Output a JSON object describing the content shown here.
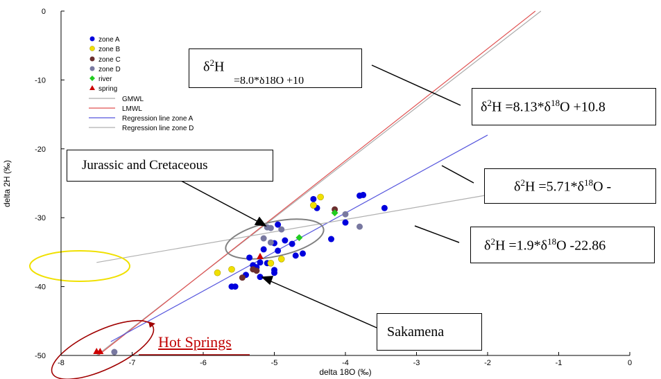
{
  "chart_data": {
    "type": "scatter",
    "xlabel": "delta 18O (‰)",
    "ylabel": "delta 2H (‰)",
    "xlim": [
      -8,
      0
    ],
    "ylim": [
      -50,
      0
    ],
    "x_ticks": [
      "-8",
      "-7",
      "-6",
      "-5",
      "-4",
      "-3",
      "-2",
      "-1",
      "0"
    ],
    "y_ticks": [
      "-50",
      "-40",
      "-30",
      "-20",
      "-10",
      "0"
    ],
    "grid": false,
    "legend_placement": "top-left",
    "series": [
      {
        "name": "zone A",
        "marker": "circle",
        "color": "#0000dd",
        "points": [
          [
            -4.45,
            -27.3
          ],
          [
            -3.8,
            -26.8
          ],
          [
            -3.75,
            -26.7
          ],
          [
            -3.45,
            -28.6
          ],
          [
            -4.4,
            -28.6
          ],
          [
            -4.0,
            -30.7
          ],
          [
            -4.2,
            -33.1
          ],
          [
            -4.95,
            -31
          ],
          [
            -4.85,
            -33.3
          ],
          [
            -5.0,
            -33.7
          ],
          [
            -4.95,
            -34.8
          ],
          [
            -4.75,
            -33.8
          ],
          [
            -4.7,
            -35.5
          ],
          [
            -4.6,
            -35.2
          ],
          [
            -5.15,
            -34.6
          ],
          [
            -5.35,
            -35.8
          ],
          [
            -5.2,
            -36.5
          ],
          [
            -5.1,
            -36.6
          ],
          [
            -5.25,
            -37.2
          ],
          [
            -5.4,
            -38.3
          ],
          [
            -5.2,
            -38.6
          ],
          [
            -5.3,
            -36.9
          ],
          [
            -5.0,
            -37.6
          ],
          [
            -5.0,
            -38
          ],
          [
            -5.55,
            -40
          ],
          [
            -5.6,
            -40
          ]
        ]
      },
      {
        "name": "zone B",
        "marker": "circle",
        "color": "#f0e000",
        "points": [
          [
            -4.35,
            -27
          ],
          [
            -4.45,
            -28.2
          ],
          [
            -5.8,
            -38
          ],
          [
            -5.6,
            -37.5
          ],
          [
            -4.9,
            -36
          ],
          [
            -5.05,
            -36.6
          ]
        ]
      },
      {
        "name": "zone C",
        "marker": "circle",
        "color": "#6b2f2f",
        "points": [
          [
            -5.45,
            -38.7
          ],
          [
            -5.3,
            -37.5
          ],
          [
            -5.25,
            -37.7
          ],
          [
            -4.15,
            -28.8
          ]
        ]
      },
      {
        "name": "zone D",
        "marker": "circle",
        "color": "#7878a0",
        "points": [
          [
            -5.1,
            -31.4
          ],
          [
            -5.05,
            -31.5
          ],
          [
            -4.9,
            -31.7
          ],
          [
            -5.15,
            -33
          ],
          [
            -5.05,
            -33.6
          ],
          [
            -4.0,
            -29.5
          ],
          [
            -3.8,
            -31.3
          ],
          [
            -7.25,
            -49.5
          ]
        ]
      },
      {
        "name": "river",
        "marker": "diamond",
        "color": "#22cc22",
        "points": [
          [
            -4.15,
            -29.3
          ],
          [
            -4.65,
            -32.9
          ]
        ]
      },
      {
        "name": "spring",
        "marker": "triangle",
        "color": "#cc0000",
        "points": [
          [
            -7.5,
            -49.4
          ],
          [
            -7.45,
            -49.4
          ],
          [
            -5.2,
            -35.6
          ]
        ]
      }
    ],
    "lines": [
      {
        "name": "GMWL",
        "color": "#aaaaaa",
        "slope": 8,
        "intercept": 10
      },
      {
        "name": "LMWL",
        "color": "#e05050",
        "slope": 8.13,
        "intercept": 10.8
      },
      {
        "name": "Regression line zone A",
        "color": "#5555dd",
        "x_range": [
          -7.3,
          -2
        ],
        "y_range": [
          -48,
          -18
        ]
      },
      {
        "name": "Regression line zone D",
        "color": "#b0b0b0",
        "x_range": [
          -7.5,
          -2
        ],
        "y_range": [
          -36.5,
          -26.7
        ]
      }
    ],
    "annotations": {
      "box_top_main": "δ",
      "box_top_sup": "2",
      "box_top_tail": "H",
      "box_top_hidden": "=8.0*δ18O +10",
      "box_lmwl_pre": "δ",
      "box_lmwl_sup1": "2",
      "box_lmwl_mid": "H =8.13*δ",
      "box_lmwl_sup2": "18",
      "box_lmwl_tail": "O +10.8",
      "box_a_pre": "δ",
      "box_a_sup1": "2",
      "box_a_mid": "H =5.71*δ",
      "box_a_sup2": "18",
      "box_a_tail": "O -",
      "box_d_pre": "δ",
      "box_d_sup1": "2",
      "box_d_mid": "H =1.9*δ",
      "box_d_sup2": "18",
      "box_d_tail": "O -22.86",
      "jurassic": "Jurassic and Cretaceous",
      "sakamena": "Sakamena",
      "hot_springs": "Hot Springs"
    },
    "colors": {
      "hot_springs": "#c00000",
      "ellipse_grey": "#808080",
      "ellipse_yellow": "#f0e000"
    }
  }
}
